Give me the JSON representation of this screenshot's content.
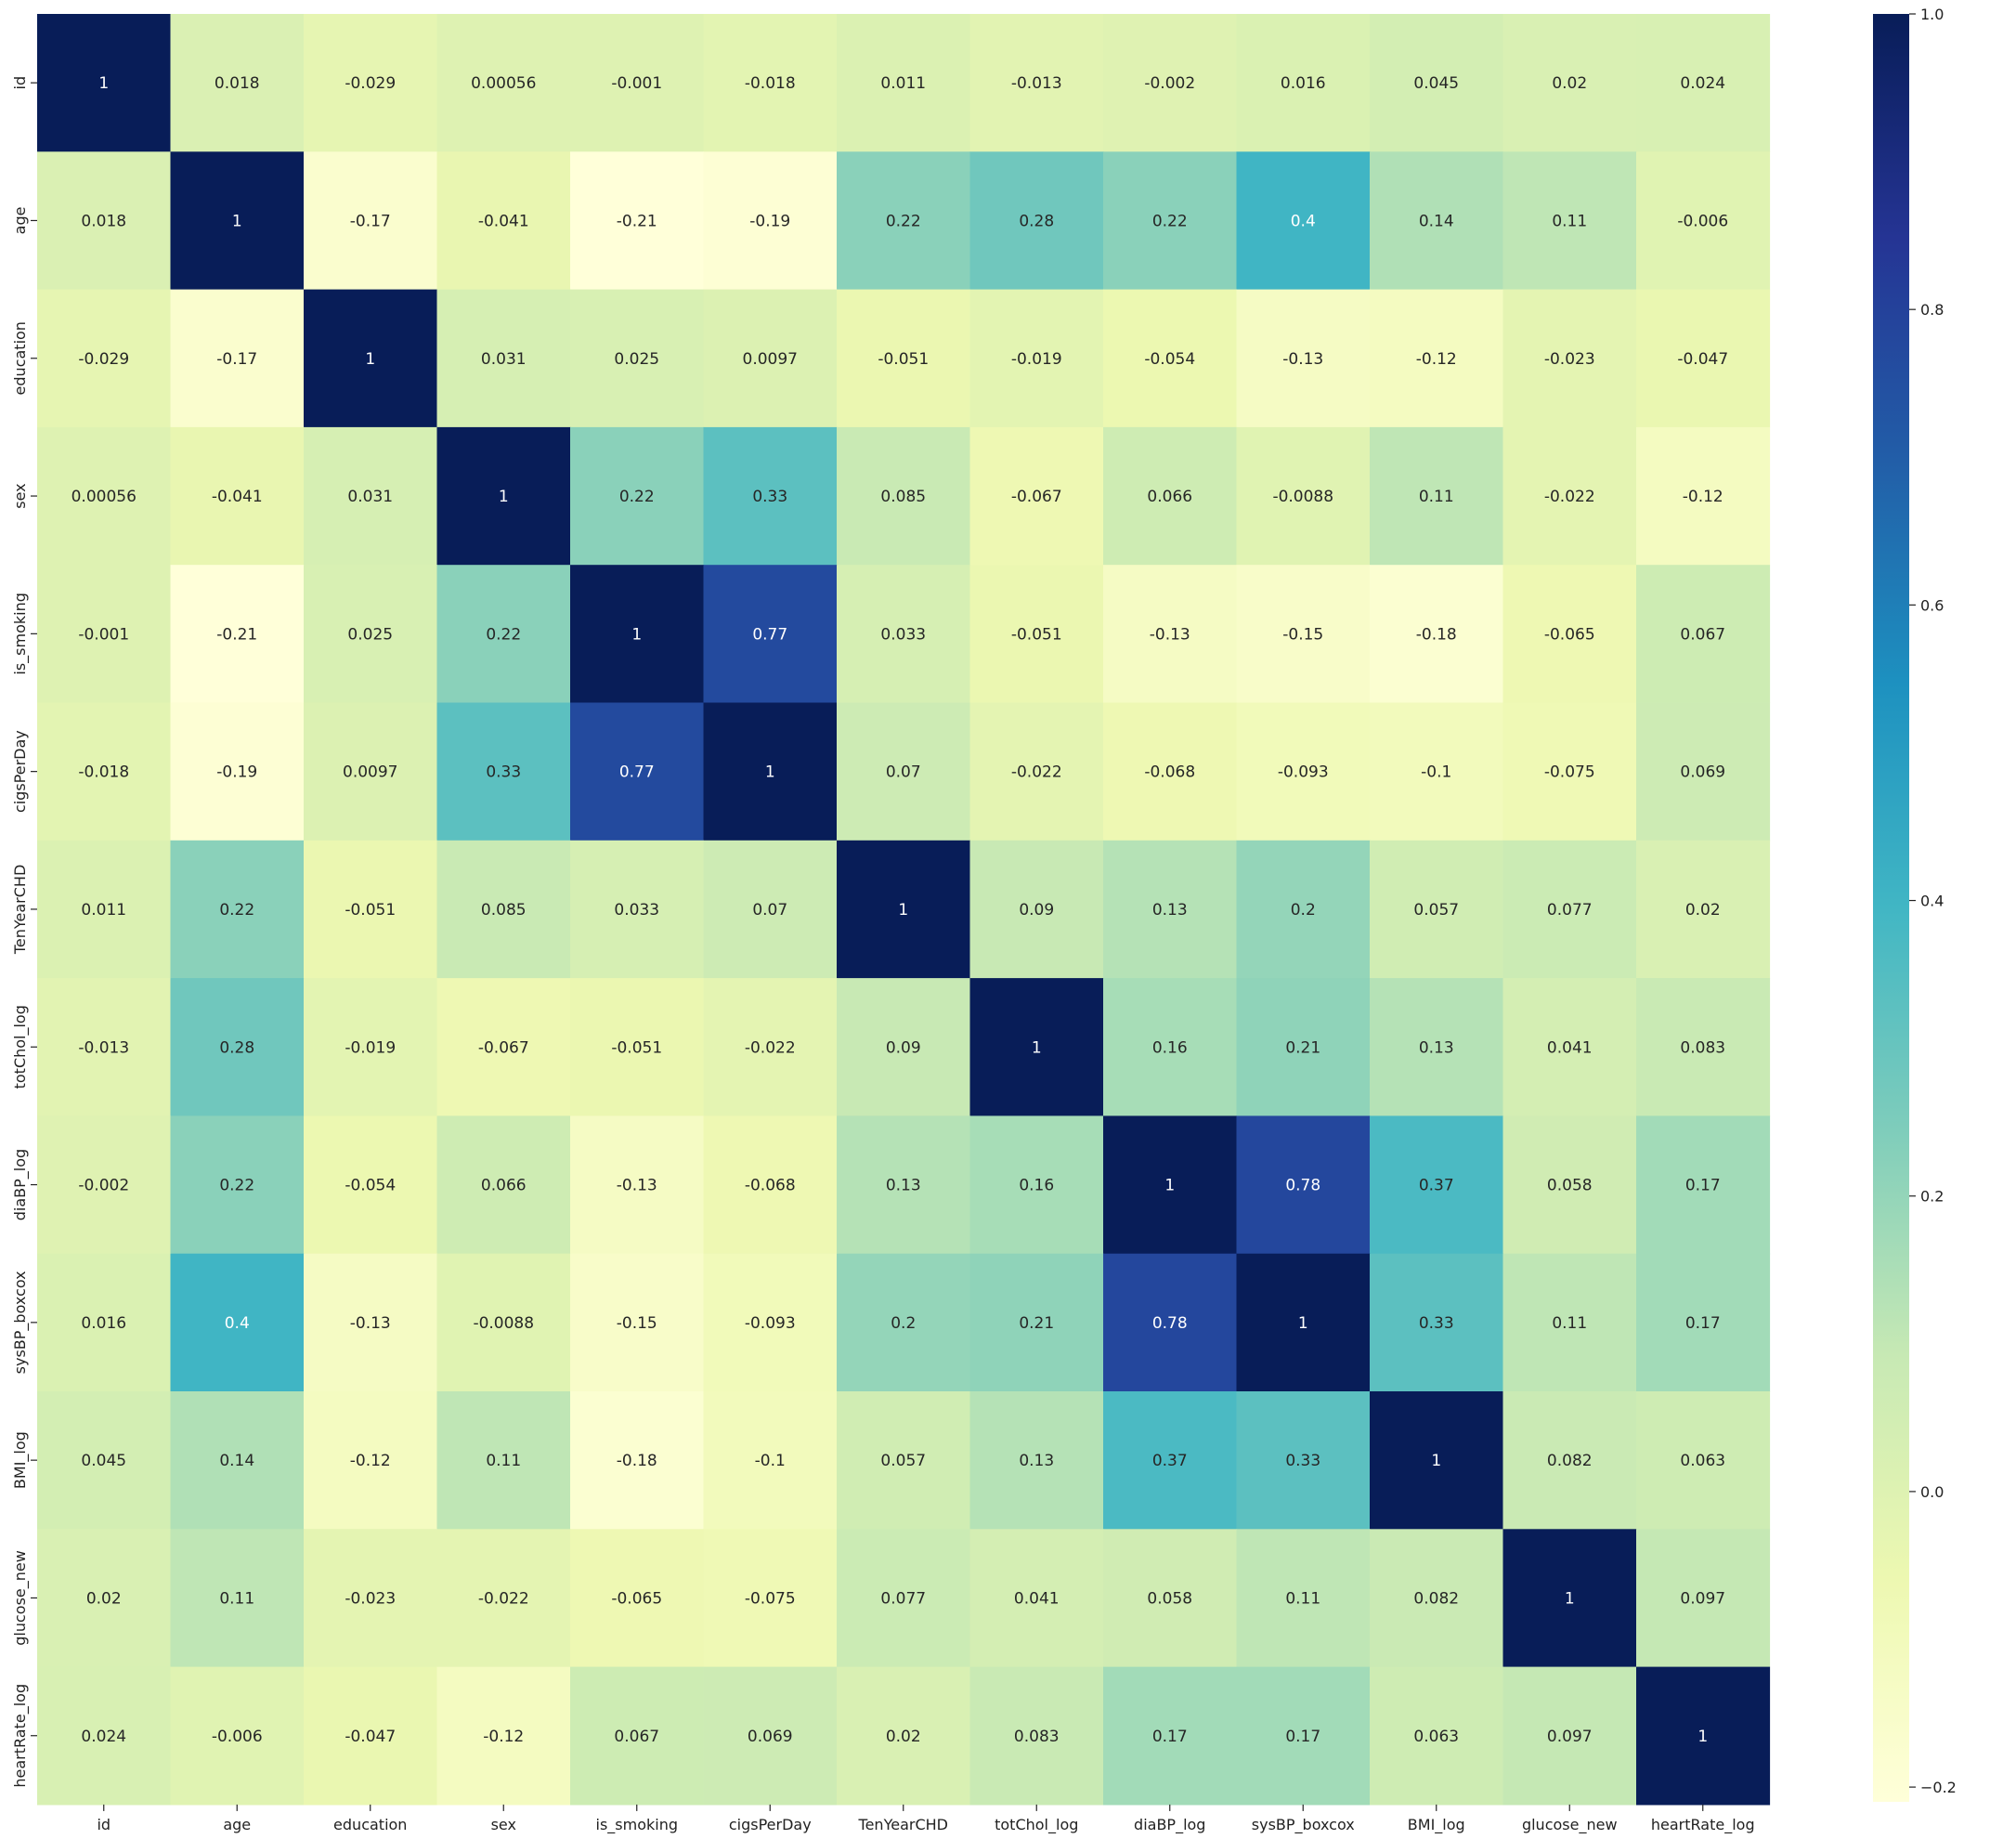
{
  "chart_data": {
    "type": "heatmap",
    "title": "",
    "xlabel": "",
    "ylabel": "",
    "labels": [
      "id",
      "age",
      "education",
      "sex",
      "is_smoking",
      "cigsPerDay",
      "TenYearCHD",
      "totChol_log",
      "diaBP_log",
      "sysBP_boxcox",
      "BMI_log",
      "glucose_new",
      "heartRate_log"
    ],
    "annotations": [
      [
        "1",
        "0.018",
        "-0.029",
        "0.00056",
        "-0.001",
        "-0.018",
        "0.011",
        "-0.013",
        "-0.002",
        "0.016",
        "0.045",
        "0.02",
        "0.024"
      ],
      [
        "0.018",
        "1",
        "-0.17",
        "-0.041",
        "-0.21",
        "-0.19",
        "0.22",
        "0.28",
        "0.22",
        "0.4",
        "0.14",
        "0.11",
        "-0.006"
      ],
      [
        "-0.029",
        "-0.17",
        "1",
        "0.031",
        "0.025",
        "0.0097",
        "-0.051",
        "-0.019",
        "-0.054",
        "-0.13",
        "-0.12",
        "-0.023",
        "-0.047"
      ],
      [
        "0.00056",
        "-0.041",
        "0.031",
        "1",
        "0.22",
        "0.33",
        "0.085",
        "-0.067",
        "0.066",
        "-0.0088",
        "0.11",
        "-0.022",
        "-0.12"
      ],
      [
        "-0.001",
        "-0.21",
        "0.025",
        "0.22",
        "1",
        "0.77",
        "0.033",
        "-0.051",
        "-0.13",
        "-0.15",
        "-0.18",
        "-0.065",
        "0.067"
      ],
      [
        "-0.018",
        "-0.19",
        "0.0097",
        "0.33",
        "0.77",
        "1",
        "0.07",
        "-0.022",
        "-0.068",
        "-0.093",
        "-0.1",
        "-0.075",
        "0.069"
      ],
      [
        "0.011",
        "0.22",
        "-0.051",
        "0.085",
        "0.033",
        "0.07",
        "1",
        "0.09",
        "0.13",
        "0.2",
        "0.057",
        "0.077",
        "0.02"
      ],
      [
        "-0.013",
        "0.28",
        "-0.019",
        "-0.067",
        "-0.051",
        "-0.022",
        "0.09",
        "1",
        "0.16",
        "0.21",
        "0.13",
        "0.041",
        "0.083"
      ],
      [
        "-0.002",
        "0.22",
        "-0.054",
        "0.066",
        "-0.13",
        "-0.068",
        "0.13",
        "0.16",
        "1",
        "0.78",
        "0.37",
        "0.058",
        "0.17"
      ],
      [
        "0.016",
        "0.4",
        "-0.13",
        "-0.0088",
        "-0.15",
        "-0.093",
        "0.2",
        "0.21",
        "0.78",
        "1",
        "0.33",
        "0.11",
        "0.17"
      ],
      [
        "0.045",
        "0.14",
        "-0.12",
        "0.11",
        "-0.18",
        "-0.1",
        "0.057",
        "0.13",
        "0.37",
        "0.33",
        "1",
        "0.082",
        "0.063"
      ],
      [
        "0.02",
        "0.11",
        "-0.023",
        "-0.022",
        "-0.065",
        "-0.075",
        "0.077",
        "0.041",
        "0.058",
        "0.11",
        "0.082",
        "1",
        "0.097"
      ],
      [
        "0.024",
        "-0.006",
        "-0.047",
        "-0.12",
        "0.067",
        "0.069",
        "0.02",
        "0.083",
        "0.17",
        "0.17",
        "0.063",
        "0.097",
        "1"
      ]
    ],
    "colorbar": {
      "range": [
        -0.21,
        1.0
      ],
      "ticks": [
        -0.2,
        0.0,
        0.2,
        0.4,
        0.6,
        0.8,
        1.0
      ],
      "tick_labels": [
        "−0.2",
        "0.0",
        "0.2",
        "0.4",
        "0.6",
        "0.8",
        "1.0"
      ],
      "colormap": "YlGnBu"
    },
    "colormap_stops": [
      "#ffffd9",
      "#edf8b1",
      "#c7e9b4",
      "#7fcdbb",
      "#41b6c4",
      "#1d91c0",
      "#225ea8",
      "#253494",
      "#081d58"
    ],
    "annotation_colors": {
      "dark": "#262626",
      "light": "#ffffff"
    },
    "grid": false,
    "legend": "colorbar-right"
  }
}
